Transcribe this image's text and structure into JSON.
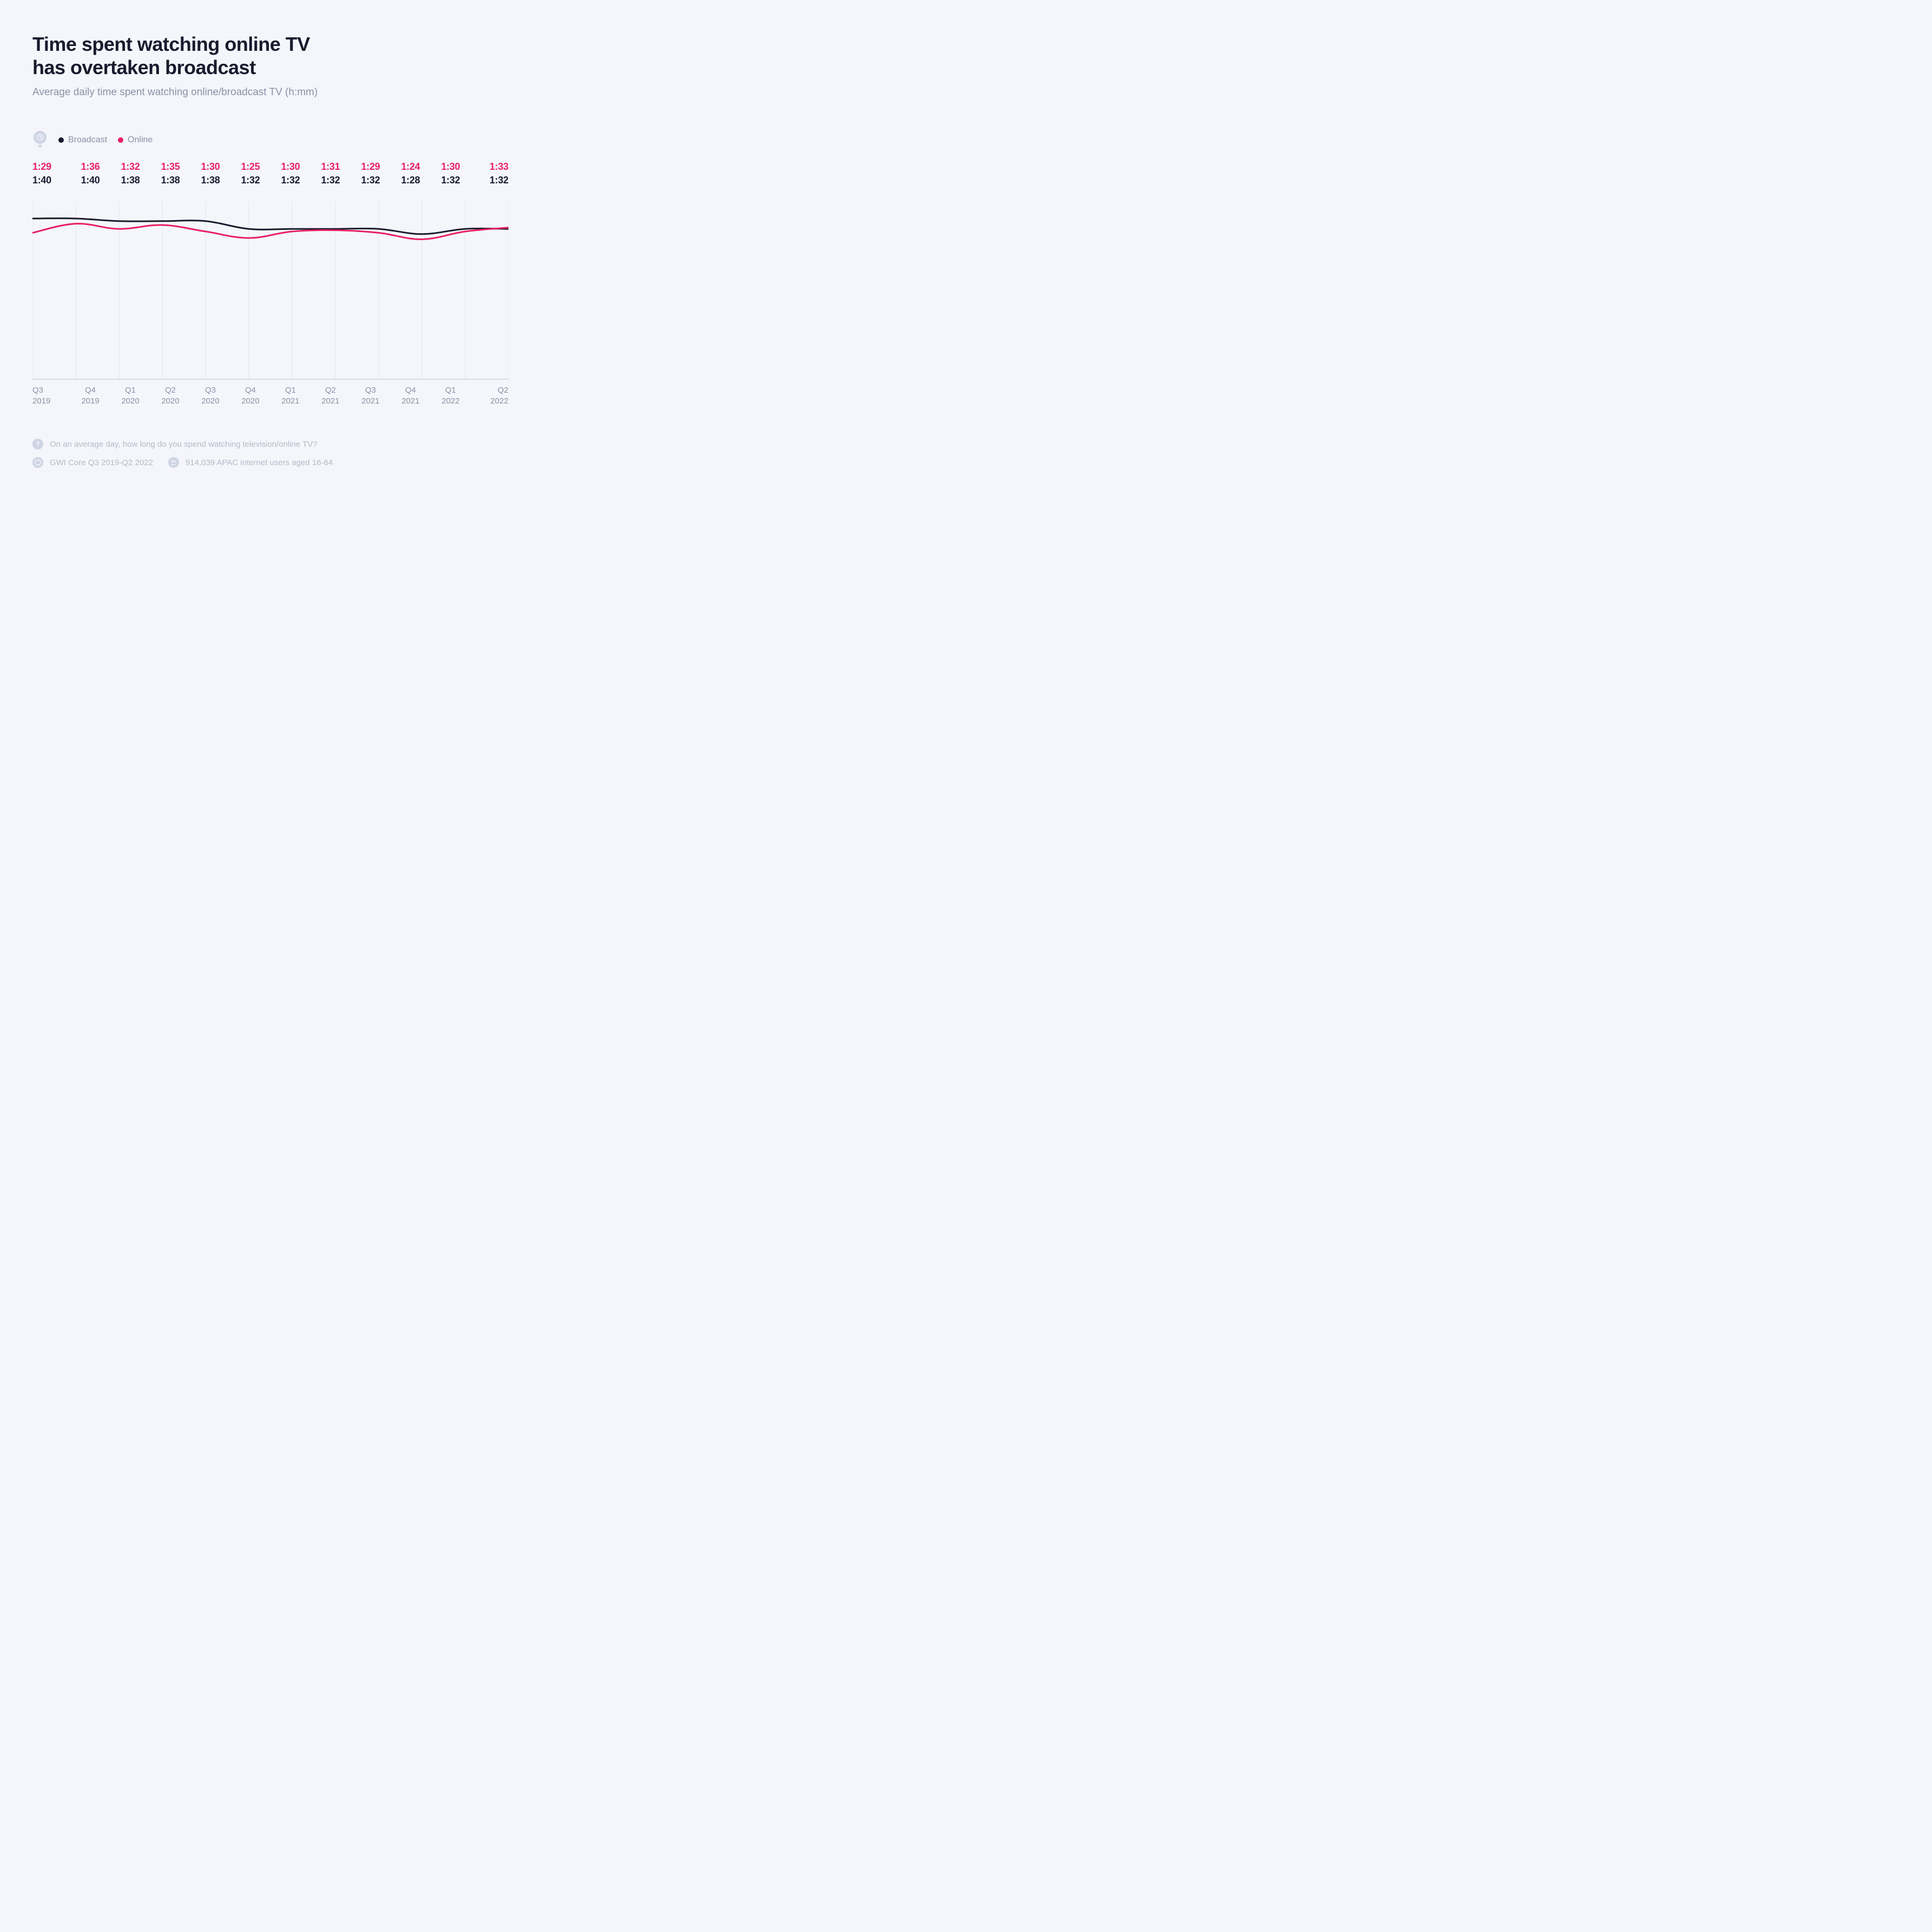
{
  "title_line1": "Time spent watching online TV",
  "title_line2": "has overtaken broadcast",
  "subtitle": "Average daily time spent watching online/broadcast TV (h:mm)",
  "legend": {
    "broadcast": "Broadcast",
    "online": "Online"
  },
  "chart": {
    "type": "line",
    "background_color": "#f4f6fb",
    "grid_color": "#e3e7f0",
    "axis_color": "#cfd5e5",
    "x_categories": [
      {
        "q": "Q3",
        "y": "2019"
      },
      {
        "q": "Q4",
        "y": "2019"
      },
      {
        "q": "Q1",
        "y": "2020"
      },
      {
        "q": "Q2",
        "y": "2020"
      },
      {
        "q": "Q3",
        "y": "2020"
      },
      {
        "q": "Q4",
        "y": "2020"
      },
      {
        "q": "Q1",
        "y": "2021"
      },
      {
        "q": "Q2",
        "y": "2021"
      },
      {
        "q": "Q3",
        "y": "2021"
      },
      {
        "q": "Q4",
        "y": "2021"
      },
      {
        "q": "Q1",
        "y": "2022"
      },
      {
        "q": "Q2",
        "y": "2022"
      }
    ],
    "series": {
      "online": {
        "color": "#e91e63",
        "line_width": 3,
        "labels": [
          "1:29",
          "1:36",
          "1:32",
          "1:35",
          "1:30",
          "1:25",
          "1:30",
          "1:31",
          "1:29",
          "1:24",
          "1:30",
          "1:33"
        ],
        "values_min": [
          89,
          96,
          92,
          95,
          90,
          85,
          90,
          91,
          89,
          84,
          90,
          93
        ]
      },
      "broadcast": {
        "color": "#1a1a2e",
        "line_width": 3,
        "labels": [
          "1:40",
          "1:40",
          "1:38",
          "1:38",
          "1:38",
          "1:32",
          "1:32",
          "1:32",
          "1:32",
          "1:28",
          "1:32",
          "1:32"
        ],
        "values_min": [
          100,
          100,
          98,
          98,
          98,
          92,
          92,
          92,
          92,
          88,
          92,
          92
        ]
      }
    },
    "y_domain_min": 0,
    "y_domain_max": 340,
    "y_top_value": 105,
    "title_fontsize": 36,
    "label_fontsize": 15
  },
  "footer": {
    "question": "On an average day, how long do you spend watching television/online TV?",
    "source": "GWI Core Q3 2019-Q2 2022",
    "sample": "914,039 APAC internet users aged 16-64"
  }
}
